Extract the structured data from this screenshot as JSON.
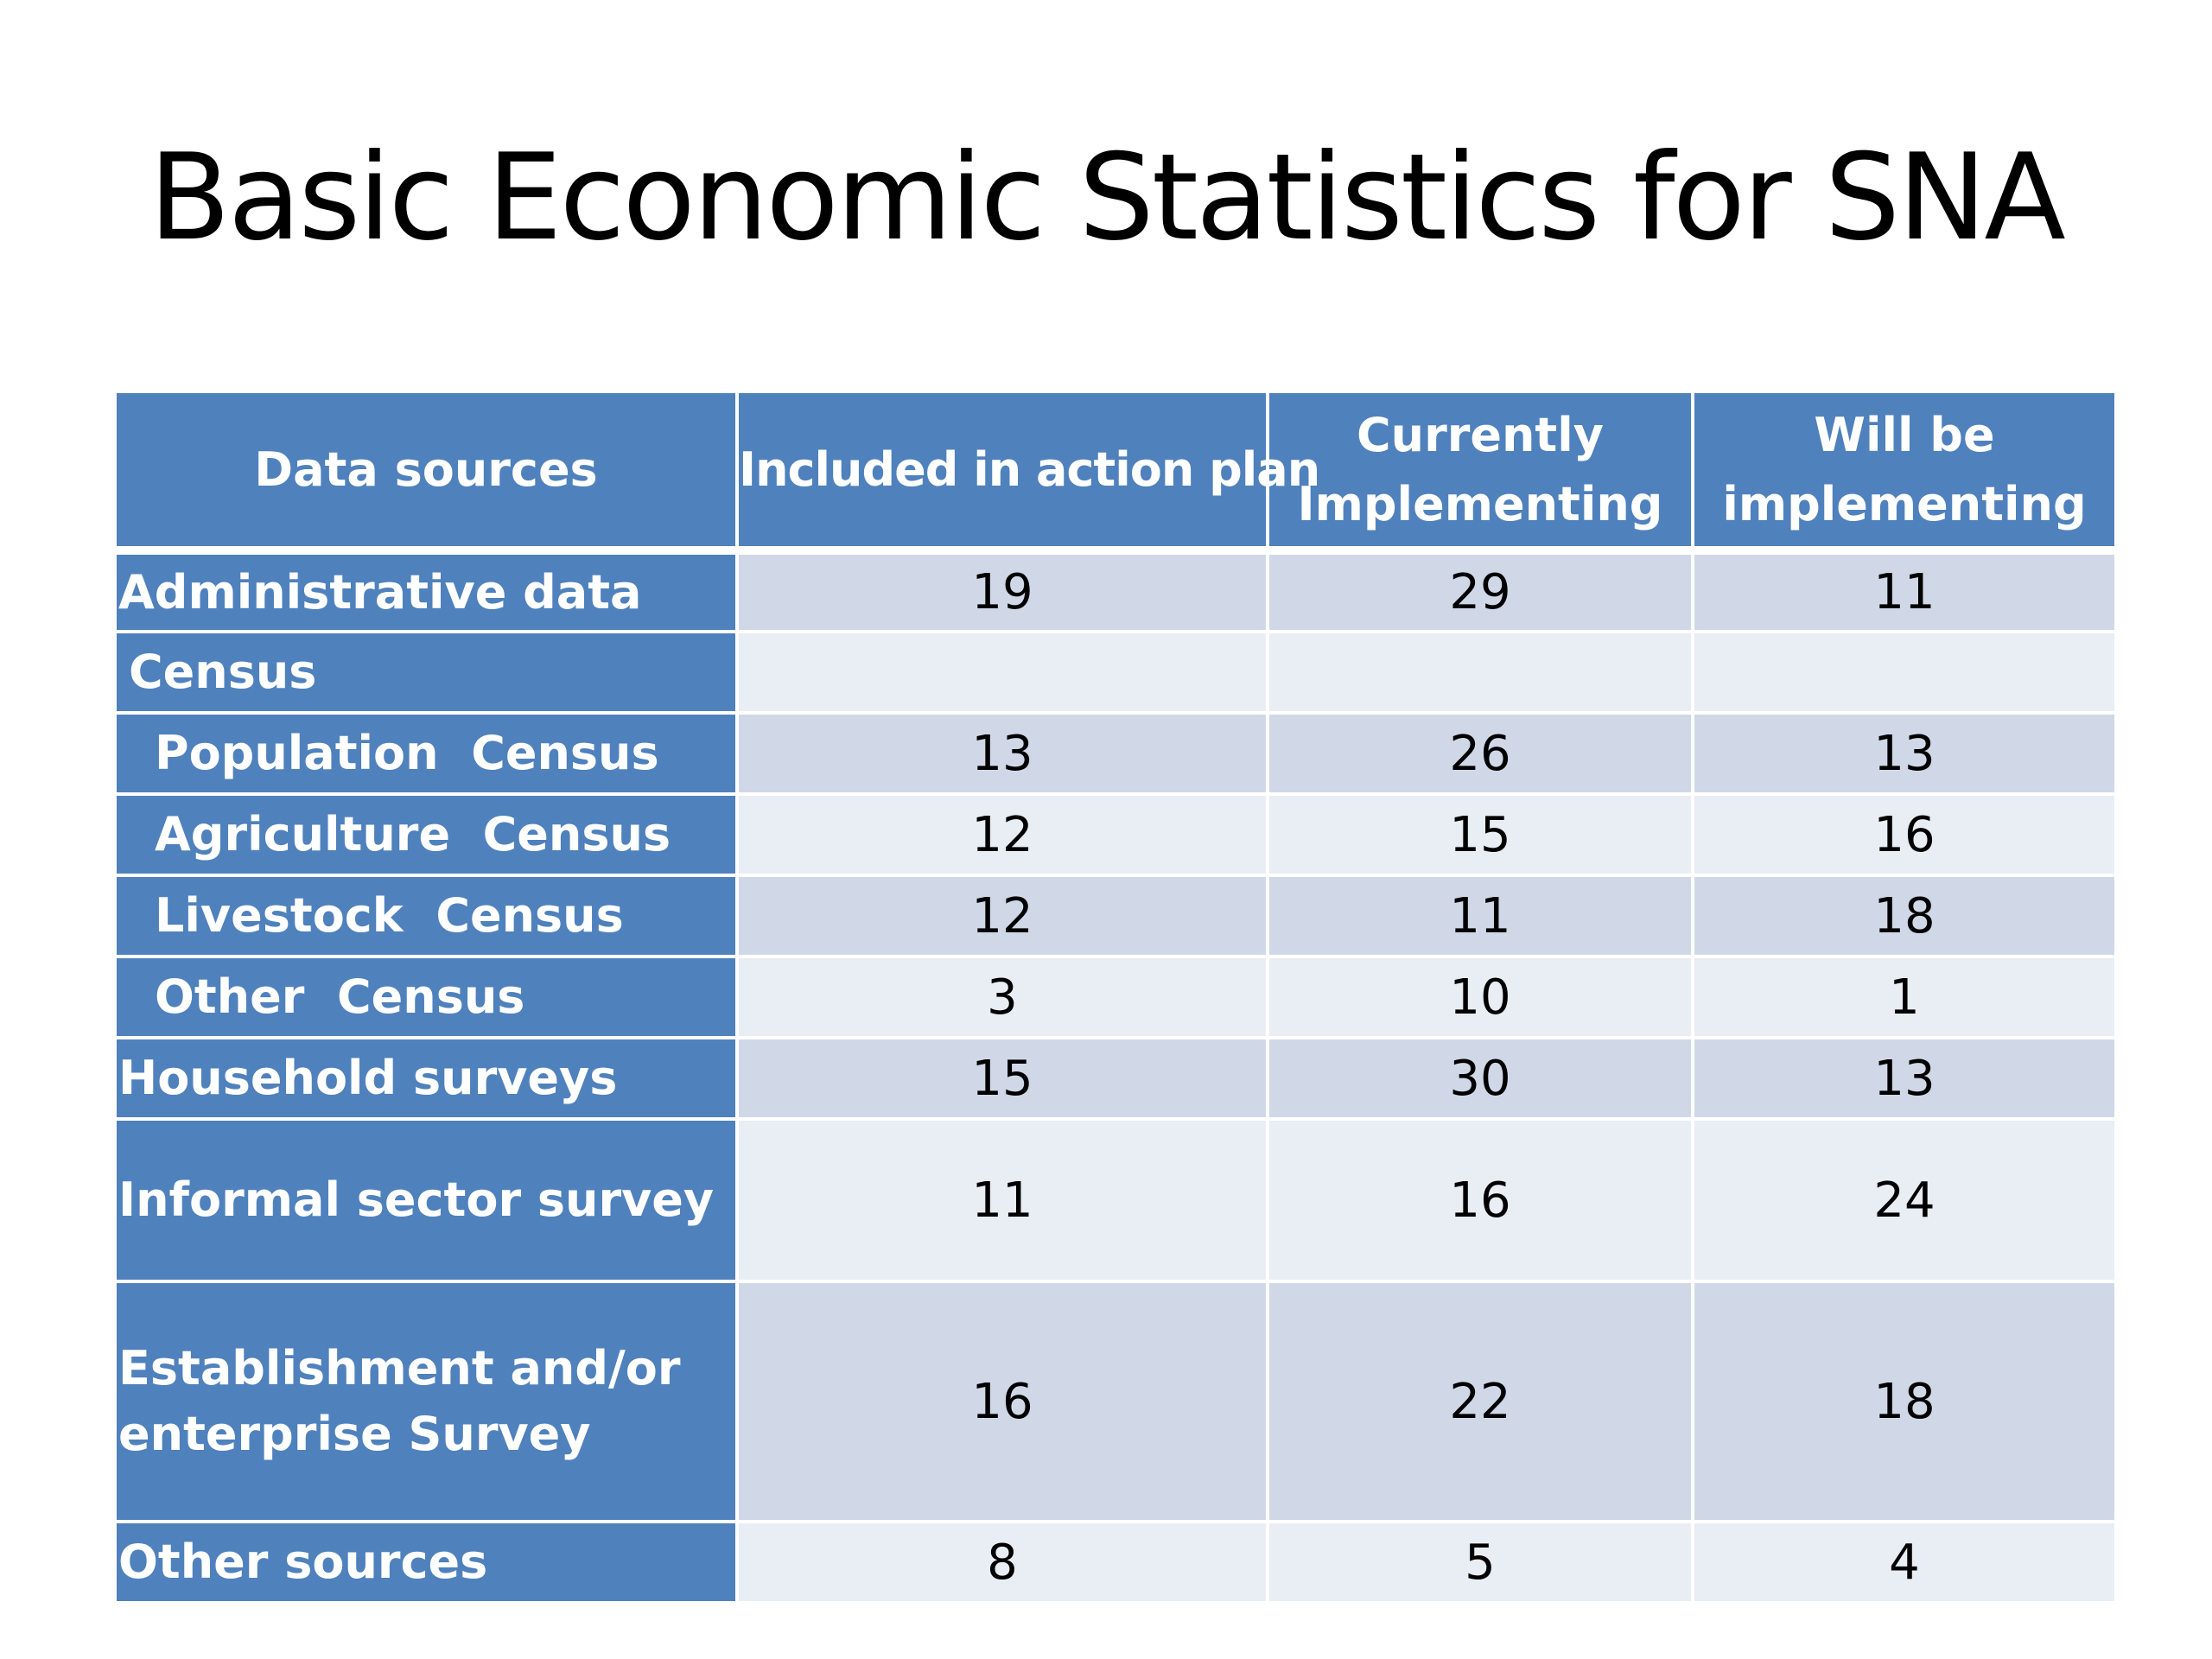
{
  "slide": {
    "title": "Basic Economic Statistics for SNA"
  },
  "table": {
    "headers": [
      "Data sources",
      "Included in action plan",
      "Currently\nImplementing",
      "Will be\nimplementing"
    ],
    "rows": [
      {
        "label": "Administrative data",
        "values": [
          "19",
          "29",
          "11"
        ]
      },
      {
        "label": "Census",
        "values": [
          "",
          "",
          ""
        ]
      },
      {
        "label": "Population  Census",
        "values": [
          "13",
          "26",
          "13"
        ]
      },
      {
        "label": "Agriculture  Census",
        "values": [
          "12",
          "15",
          "16"
        ]
      },
      {
        "label": "Livestock  Census",
        "values": [
          "12",
          "11",
          "18"
        ]
      },
      {
        "label": "Other  Census",
        "values": [
          "3",
          "10",
          "1"
        ]
      },
      {
        "label": "Household surveys",
        "values": [
          "15",
          "30",
          "13"
        ]
      },
      {
        "label": "Informal sector survey",
        "values": [
          "11",
          "16",
          "24"
        ]
      },
      {
        "label": "Establishment and/or\nenterprise Survey",
        "values": [
          "16",
          "22",
          "18"
        ]
      },
      {
        "label": "Other sources",
        "values": [
          "8",
          "5",
          "4"
        ]
      }
    ]
  }
}
